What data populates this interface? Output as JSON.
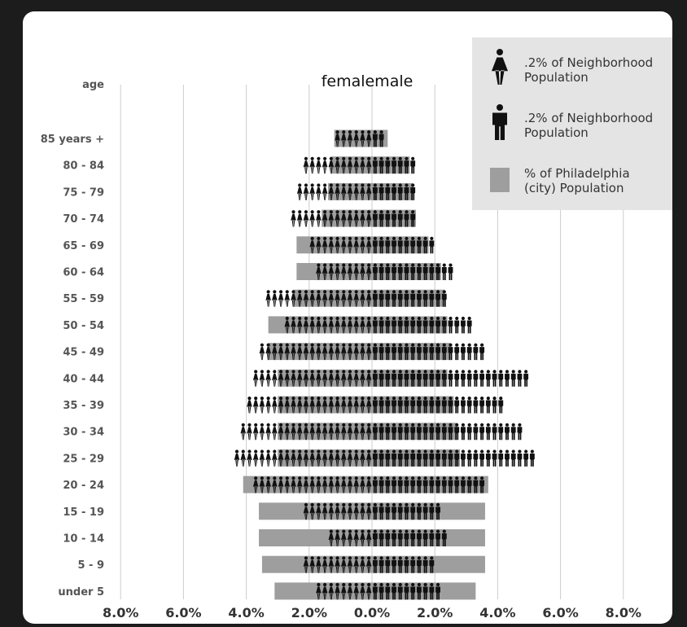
{
  "chart_data": {
    "type": "bar",
    "title": "femalemale",
    "ylabel": "age",
    "categories": [
      "85 years +",
      "80 - 84",
      "75 - 79",
      "70 - 74",
      "65 - 69",
      "60 - 64",
      "55 - 59",
      "50 - 54",
      "45 - 49",
      "40 - 44",
      "35 - 39",
      "30 - 34",
      "25 - 29",
      "20 - 24",
      "15 - 19",
      "10 - 14",
      "5 - 9",
      "under 5"
    ],
    "xticks": [
      "8.0%",
      "6.0%",
      "4.0%",
      "2.0%",
      "0.0%",
      "2.0%",
      "4.0%",
      "6.0%",
      "8.0%"
    ],
    "xlim": [
      -8,
      8
    ],
    "series": [
      {
        "name": "Neighborhood female",
        "values": [
          1.2,
          2.2,
          2.4,
          2.6,
          2.0,
          1.8,
          3.4,
          2.8,
          3.6,
          3.8,
          4.0,
          4.2,
          4.4,
          3.8,
          2.2,
          1.4,
          2.2,
          1.8
        ]
      },
      {
        "name": "Neighborhood male",
        "values": [
          0.4,
          1.4,
          1.4,
          1.4,
          2.0,
          2.6,
          2.4,
          3.2,
          3.6,
          5.0,
          4.2,
          4.8,
          5.2,
          3.6,
          2.2,
          2.4,
          2.0,
          2.2
        ]
      },
      {
        "name": "Philadelphia female",
        "values": [
          1.2,
          1.3,
          1.4,
          1.6,
          2.4,
          2.4,
          2.5,
          3.3,
          3.3,
          3.0,
          3.0,
          3.0,
          3.0,
          4.1,
          3.6,
          3.6,
          3.5,
          3.1
        ]
      },
      {
        "name": "Philadelphia male",
        "values": [
          0.5,
          1.2,
          1.3,
          1.4,
          1.8,
          2.2,
          2.3,
          2.4,
          2.5,
          2.4,
          2.6,
          2.7,
          2.8,
          3.7,
          3.6,
          3.6,
          3.6,
          3.3
        ]
      }
    ],
    "legend": [
      {
        "label1": ".2% of Neighborhood",
        "label2": "Population",
        "icon": "female-figure-icon"
      },
      {
        "label1": ".2% of Neighborhood",
        "label2": "Population",
        "icon": "male-figure-icon"
      },
      {
        "label1": "% of Philadelphia",
        "label2": "(city) Population",
        "icon": "gray-bar-swatch"
      }
    ],
    "legend_position": "top-right",
    "grid": true,
    "colors": {
      "city_bar": "#9e9e9e",
      "figure": "#111111",
      "grid": "#cccccc",
      "legend_bg": "#e4e4e4"
    }
  }
}
